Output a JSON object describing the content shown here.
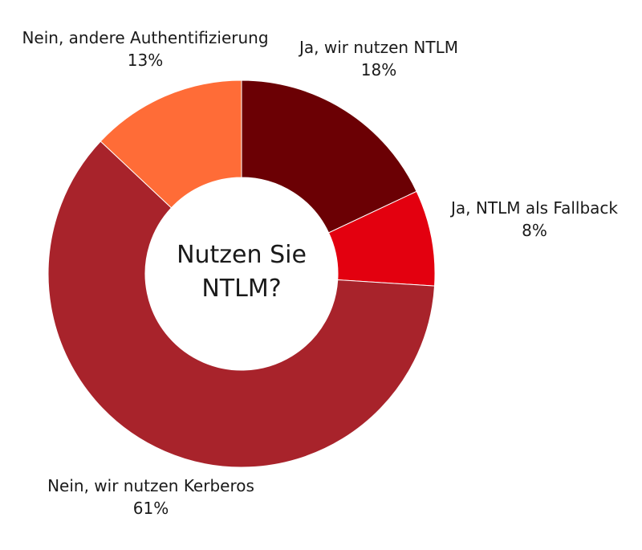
{
  "chart_data": {
    "type": "pie",
    "variant": "donut",
    "title": "Nutzen Sie NTLM?",
    "title_lines": [
      "Nutzen Sie",
      "NTLM?"
    ],
    "slices": [
      {
        "label": "Ja, wir nutzen NTLM",
        "value": 18,
        "value_label": "18%",
        "color": "#6b0004"
      },
      {
        "label": "Ja, NTLM als Fallback",
        "value": 8,
        "value_label": "8%",
        "color": "#e3000f"
      },
      {
        "label": "Nein, wir nutzen Kerberos",
        "value": 61,
        "value_label": "61%",
        "color": "#a8232b"
      },
      {
        "label": "Nein, andere Authentifizierung",
        "value": 13,
        "value_label": "13%",
        "color": "#ff6c37"
      }
    ],
    "legend": "none"
  }
}
